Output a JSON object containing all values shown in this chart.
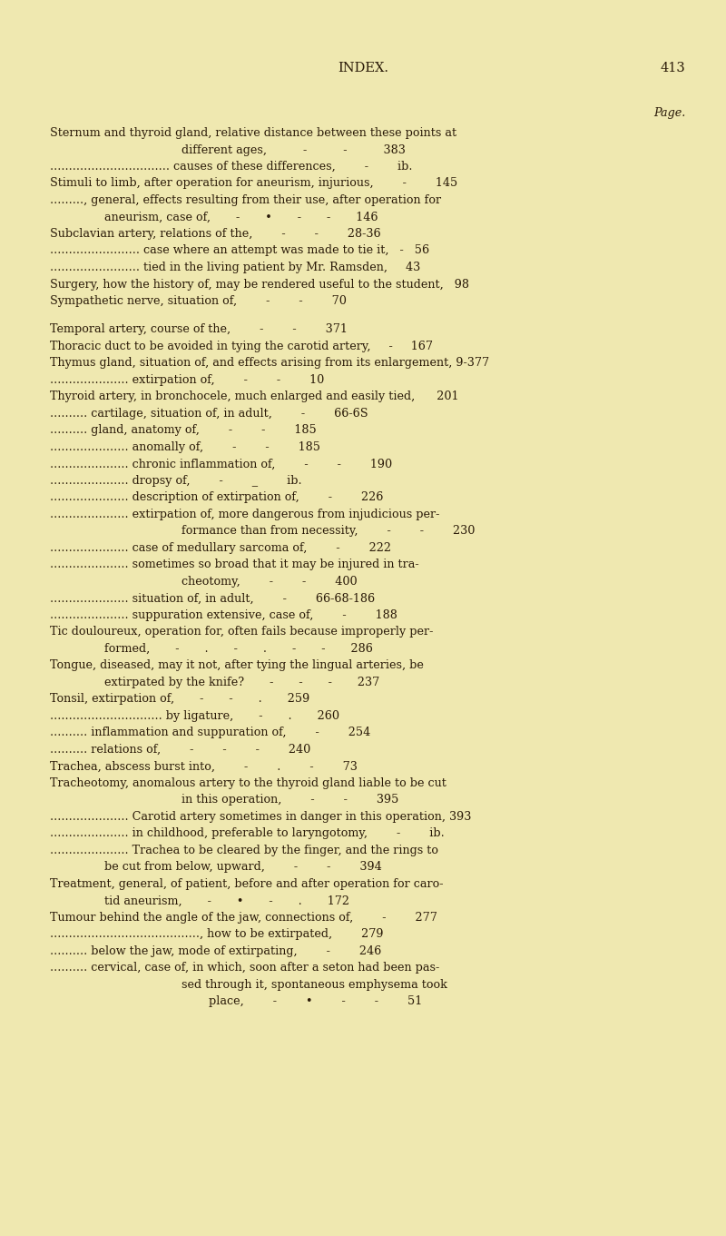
{
  "bg_color": "#efe8b0",
  "text_color": "#2a1a08",
  "title": "INDEX.",
  "page_num": "413",
  "title_fontsize": 10.5,
  "body_fontsize": 9.2,
  "lines": [
    {
      "indent": "right",
      "text": "Page."
    },
    {
      "indent": "body",
      "text": "Sternum and thyroid gland, relative distance between these points at"
    },
    {
      "indent": "cont_center",
      "text": "different ages,          -          -          383"
    },
    {
      "indent": "body",
      "text": "................................ causes of these differences,        -        ib."
    },
    {
      "indent": "body",
      "text": "Stimuli to limb, after operation for aneurism, injurious,        -        145"
    },
    {
      "indent": "body",
      "text": "........., general, effects resulting from their use, after operation for"
    },
    {
      "indent": "cont",
      "text": "aneurism, case of,       -       •       -       -       146"
    },
    {
      "indent": "body",
      "text": "Subclavian artery, relations of the,        -        -        28-36"
    },
    {
      "indent": "body",
      "text": "........................ case where an attempt was made to tie it,   -   56"
    },
    {
      "indent": "body",
      "text": "........................ tied in the living patient by Mr. Ramsden,     43"
    },
    {
      "indent": "body",
      "text": "Surgery, how the history of, may be rendered useful to the student,   98"
    },
    {
      "indent": "body",
      "text": "Sympathetic nerve, situation of,        -        -        70"
    },
    {
      "indent": "blank",
      "text": ""
    },
    {
      "indent": "body",
      "text": "Temporal artery, course of the,        -        -        371"
    },
    {
      "indent": "body",
      "text": "Thoracic duct to be avoided in tying the carotid artery,     -     167"
    },
    {
      "indent": "body",
      "text": "Thymus gland, situation of, and effects arising from its enlargement, 9-377"
    },
    {
      "indent": "body",
      "text": "..................... extirpation of,        -        -        10"
    },
    {
      "indent": "body",
      "text": "Thyroid artery, in bronchocele, much enlarged and easily tied,      201"
    },
    {
      "indent": "body",
      "text": ".......... cartilage, situation of, in adult,        -        66-6S"
    },
    {
      "indent": "body",
      "text": ".......... gland, anatomy of,        -        -        185"
    },
    {
      "indent": "body",
      "text": "..................... anomally of,        -        -        185"
    },
    {
      "indent": "body",
      "text": "..................... chronic inflammation of,        -        -        190"
    },
    {
      "indent": "body",
      "text": "..................... dropsy of,        -        _        ib."
    },
    {
      "indent": "body",
      "text": "..................... description of extirpation of,        -        226"
    },
    {
      "indent": "body",
      "text": "..................... extirpation of, more dangerous from injudicious per-"
    },
    {
      "indent": "cont_center",
      "text": "formance than from necessity,        -        -        230"
    },
    {
      "indent": "body",
      "text": "..................... case of medullary sarcoma of,        -        222"
    },
    {
      "indent": "body",
      "text": "..................... sometimes so broad that it may be injured in tra-"
    },
    {
      "indent": "cont_center",
      "text": "cheotomy,        -        -        400"
    },
    {
      "indent": "body",
      "text": "..................... situation of, in adult,        -        66-68-186"
    },
    {
      "indent": "body",
      "text": "..................... suppuration extensive, case of,        -        188"
    },
    {
      "indent": "body",
      "text": "Tic douloureux, operation for, often fails because improperly per-"
    },
    {
      "indent": "cont",
      "text": "formed,       -       .       -       .       -       -       286"
    },
    {
      "indent": "body",
      "text": "Tongue, diseased, may it not, after tying the lingual arteries, be"
    },
    {
      "indent": "cont",
      "text": "extirpated by the knife?       -       -       -       237"
    },
    {
      "indent": "body",
      "text": "Tonsil, extirpation of,       -       -       .       259"
    },
    {
      "indent": "body",
      "text": ".............................. by ligature,       -       .       260"
    },
    {
      "indent": "body",
      "text": ".......... inflammation and suppuration of,        -        254"
    },
    {
      "indent": "body",
      "text": ".......... relations of,        -        -        -        240"
    },
    {
      "indent": "body",
      "text": "Trachea, abscess burst into,        -        .        -        73"
    },
    {
      "indent": "body",
      "text": "Tracheotomy, anomalous artery to the thyroid gland liable to be cut"
    },
    {
      "indent": "cont_center",
      "text": "in this operation,        -        -        395"
    },
    {
      "indent": "body",
      "text": "..................... Carotid artery sometimes in danger in this operation, 393"
    },
    {
      "indent": "body",
      "text": "..................... in childhood, preferable to laryngotomy,        -        ib."
    },
    {
      "indent": "body",
      "text": "..................... Trachea to be cleared by the finger, and the rings to"
    },
    {
      "indent": "cont",
      "text": "be cut from below, upward,        -        -        394"
    },
    {
      "indent": "body",
      "text": "Treatment, general, of patient, before and after operation for caro-"
    },
    {
      "indent": "cont",
      "text": "tid aneurism,       -       •       -       .       172"
    },
    {
      "indent": "body",
      "text": "Tumour behind the angle of the jaw, connections of,        -        277"
    },
    {
      "indent": "body",
      "text": "........................................, how to be extirpated,        279"
    },
    {
      "indent": "body",
      "text": ".......... below the jaw, mode of extirpating,        -        246"
    },
    {
      "indent": "body",
      "text": ".......... cervical, case of, in which, soon after a seton had been pas-"
    },
    {
      "indent": "cont_center",
      "text": "sed through it, spontaneous emphysema took"
    },
    {
      "indent": "cont_center2",
      "text": "place,        -        •        -        -        51"
    }
  ]
}
